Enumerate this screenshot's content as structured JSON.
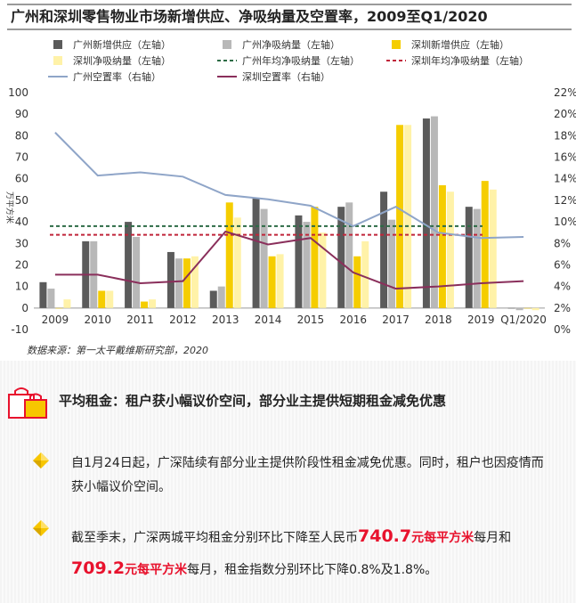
{
  "chart_data": {
    "type": "bar",
    "title": "广州和深圳零售物业市场新增供应、净吸纳量及空置率，2009至Q1/2020",
    "categories": [
      "2009",
      "2010",
      "2011",
      "2012",
      "2013",
      "2014",
      "2015",
      "2016",
      "2017",
      "2018",
      "2019",
      "Q1/2020"
    ],
    "ylabel": "万平方米",
    "ylim": [
      -10,
      100
    ],
    "y_ticks": [
      "-10",
      "0",
      "10",
      "20",
      "30",
      "40",
      "50",
      "60",
      "70",
      "80",
      "90",
      "100"
    ],
    "y2lim": [
      0,
      22
    ],
    "y2_ticks": [
      "0%",
      "2%",
      "4%",
      "6%",
      "8%",
      "10%",
      "12%",
      "14%",
      "16%",
      "18%",
      "20%",
      "22%"
    ],
    "legend": [
      "广州新增供应（左轴）",
      "广州净吸纳量（左轴）",
      "深圳新增供应（左轴）",
      "深圳净吸纳量（左轴）",
      "广州年均净吸纳量（左轴）",
      "深圳年均净吸纳量（左轴）",
      "广州空置率（右轴）",
      "深圳空置率（右轴）"
    ],
    "series": [
      {
        "name": "广州新增供应（左轴）",
        "kind": "bar",
        "axis": "left",
        "color": "#5b5b5b",
        "values": [
          12,
          31,
          40,
          26,
          8,
          51,
          43,
          47,
          54,
          88,
          47,
          0
        ]
      },
      {
        "name": "广州净吸纳量（左轴）",
        "kind": "bar",
        "axis": "left",
        "color": "#b8b8b8",
        "values": [
          9,
          31,
          33,
          23,
          10,
          46,
          40,
          49,
          41,
          89,
          46,
          -1
        ]
      },
      {
        "name": "深圳新增供应（左轴）",
        "kind": "bar",
        "axis": "left",
        "color": "#f5cd00",
        "values": [
          0,
          8,
          3,
          23,
          49,
          24,
          47,
          24,
          85,
          57,
          59,
          0
        ]
      },
      {
        "name": "深圳净吸纳量（左轴）",
        "kind": "bar",
        "axis": "left",
        "color": "#fff2a8",
        "values": [
          4,
          8,
          4,
          24,
          42,
          25,
          35,
          31,
          85,
          54,
          55,
          -1
        ]
      },
      {
        "name": "广州年均净吸纳量（左轴）",
        "kind": "hline",
        "axis": "left",
        "color": "#2c6b45",
        "value": 38
      },
      {
        "name": "深圳年均净吸纳量（左轴）",
        "kind": "hline",
        "axis": "left",
        "color": "#c0253a",
        "value": 34
      },
      {
        "name": "广州空置率（右轴）",
        "kind": "line",
        "axis": "right",
        "color": "#8fa5c8",
        "values": [
          18.3,
          14.3,
          14.6,
          14.2,
          12.5,
          12.1,
          11.5,
          9.6,
          11.4,
          9.0,
          8.5,
          8.6
        ]
      },
      {
        "name": "深圳空置率（右轴）",
        "kind": "line",
        "axis": "right",
        "color": "#8a2f5b",
        "values": [
          5.1,
          5.1,
          4.3,
          4.5,
          9.1,
          7.9,
          8.5,
          5.3,
          3.8,
          4.0,
          4.3,
          4.5
        ]
      }
    ]
  },
  "source_note": "数据来源：第一太平戴维斯研究部，2020",
  "section": {
    "title": "平均租金：租户获小幅议价空间，部分业主提供短期租金减免优惠",
    "para1": "自1月24日起，广深陆续有部分业主提供阶段性租金减免优惠。同时，租户也因疫情而获小幅议价空间。",
    "para2": {
      "t1": "截至季末，广深两城平均租金分别环比下降至人民币",
      "v1": "740.7",
      "u1": "元每平方米",
      "t2": "每月和",
      "v2": "709.2",
      "u2": "元每平方米",
      "t3": "每月，租金指数分别环比下降0.8%及1.8%。"
    },
    "accent_color": "#e8122d",
    "icon": "shopping-bags-icon",
    "bullet_icon": "yellow-diamond-icon"
  }
}
